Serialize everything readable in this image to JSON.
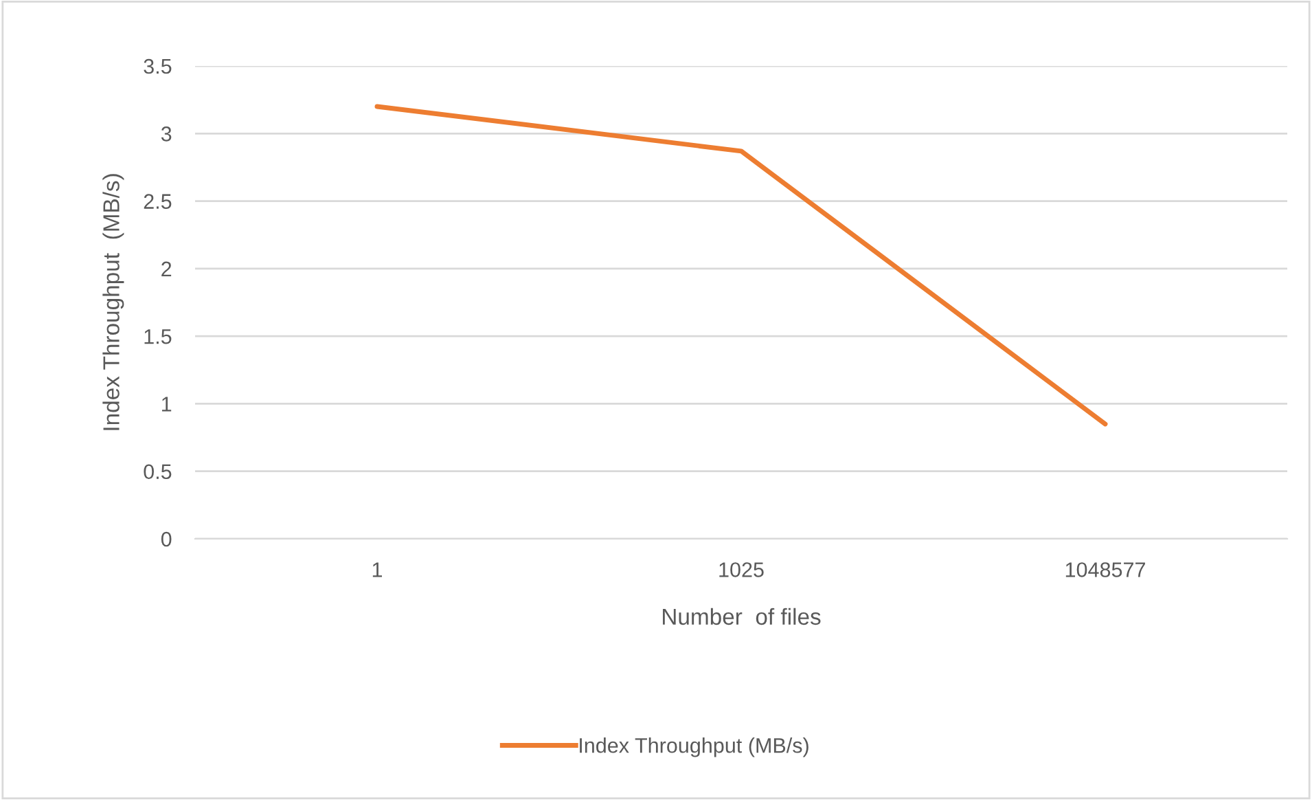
{
  "chart_data": {
    "type": "line",
    "xlabel": "Number  of files",
    "ylabel": "Index Throughput  (MB/s)",
    "categories": [
      "1",
      "1025",
      "1048577"
    ],
    "series": [
      {
        "name": "Index Throughput (MB/s)",
        "color": "#ed7d31",
        "values": [
          3.2,
          2.87,
          0.85
        ]
      }
    ],
    "ylim": [
      0,
      3.5
    ],
    "yticks": [
      0,
      0.5,
      1,
      1.5,
      2,
      2.5,
      3,
      3.5
    ],
    "grid": "y",
    "legend": "bottom",
    "marker": "none",
    "line_style": "solid"
  }
}
